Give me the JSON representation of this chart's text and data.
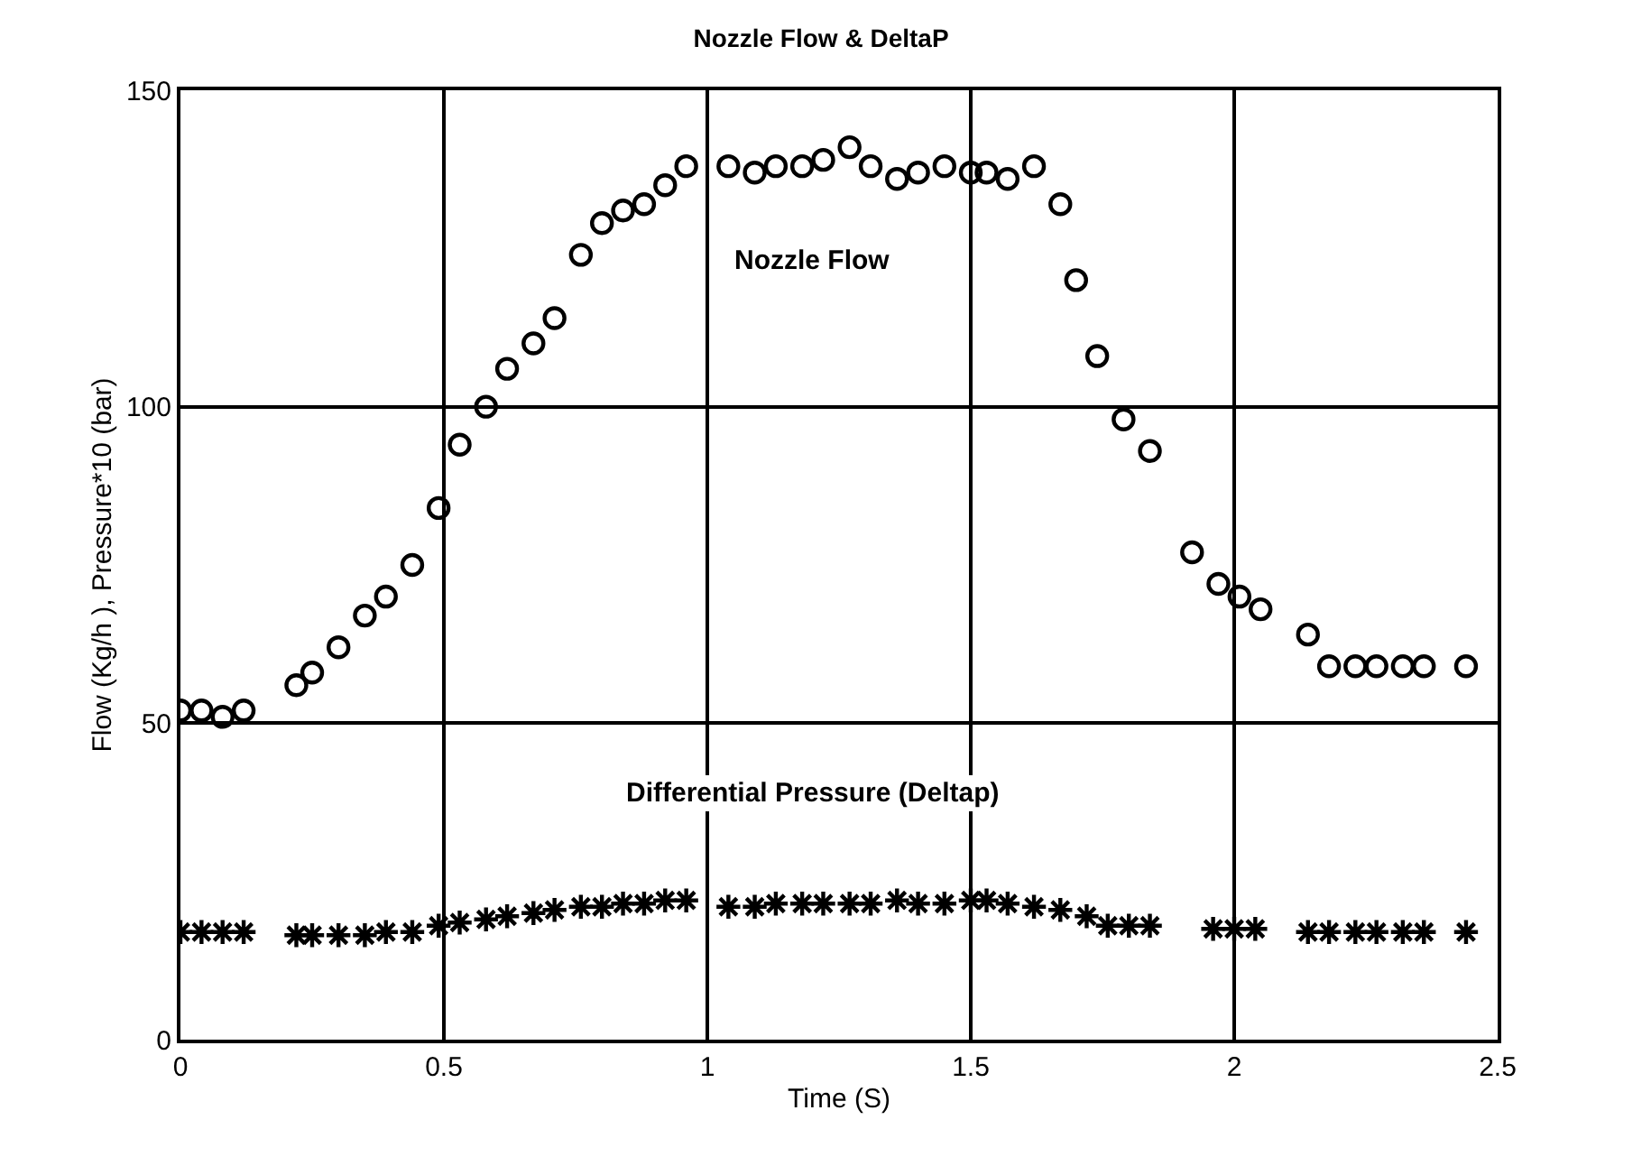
{
  "chart_data": {
    "type": "scatter",
    "title": "Nozzle Flow & DeltaP",
    "xlabel": "Time (S)",
    "ylabel": "Flow (Kg/h ), Pressure*10 (bar)",
    "xlim": [
      0,
      2.5
    ],
    "xticks": [
      0,
      0.5,
      1,
      1.5,
      2,
      2.5
    ],
    "ylim": [
      0,
      150
    ],
    "yticks": [
      0,
      50,
      100,
      150
    ],
    "grid": true,
    "legend": false,
    "series": [
      {
        "color": "#000000",
        "marker": "circle",
        "x": [
          0,
          0.04,
          0.08,
          0.12,
          0.22,
          0.25,
          0.3,
          0.35,
          0.39,
          0.44,
          0.49,
          0.53,
          0.58,
          0.62,
          0.67,
          0.71,
          0.76,
          0.8,
          0.84,
          0.88,
          0.92,
          0.96,
          1.04,
          1.09,
          1.13,
          1.18,
          1.22,
          1.27,
          1.31,
          1.36,
          1.4,
          1.45,
          1.5,
          1.53,
          1.57,
          1.62,
          1.67,
          1.7,
          1.74,
          1.79,
          1.84,
          1.92,
          1.97,
          2.01,
          2.05,
          2.14,
          2.18,
          2.23,
          2.27,
          2.32,
          2.36,
          2.44
        ],
        "values": [
          52,
          52,
          51,
          52,
          56,
          58,
          62,
          67,
          70,
          75,
          84,
          94,
          100,
          106,
          110,
          114,
          124,
          129,
          131,
          132,
          135,
          138,
          138,
          137,
          138,
          138,
          139,
          141,
          138,
          136,
          137,
          138,
          137,
          137,
          136,
          138,
          132,
          120,
          108,
          98,
          93,
          77,
          72,
          70,
          68,
          64,
          59,
          59,
          59,
          59,
          59,
          59
        ]
      },
      {
        "color": "#000000",
        "marker": "cross",
        "x": [
          0,
          0.04,
          0.08,
          0.12,
          0.22,
          0.25,
          0.3,
          0.35,
          0.39,
          0.44,
          0.49,
          0.53,
          0.58,
          0.62,
          0.67,
          0.71,
          0.76,
          0.8,
          0.84,
          0.88,
          0.92,
          0.96,
          1.04,
          1.09,
          1.13,
          1.18,
          1.22,
          1.27,
          1.31,
          1.36,
          1.4,
          1.45,
          1.5,
          1.53,
          1.57,
          1.62,
          1.67,
          1.72,
          1.76,
          1.8,
          1.84,
          1.96,
          2.0,
          2.04,
          2.14,
          2.18,
          2.23,
          2.27,
          2.32,
          2.36,
          2.44
        ],
        "values": [
          17,
          17,
          17,
          17,
          16.5,
          16.5,
          16.5,
          16.5,
          17,
          17,
          18,
          18.5,
          19,
          19.5,
          20,
          20.5,
          21,
          21,
          21.5,
          21.5,
          22,
          22,
          21,
          21,
          21.5,
          21.5,
          21.5,
          21.5,
          21.5,
          22,
          21.5,
          21.5,
          22,
          22,
          21.5,
          21,
          20.5,
          19.5,
          18,
          18,
          18,
          17.5,
          17.5,
          17.5,
          17,
          17,
          17,
          17,
          17,
          17,
          17
        ]
      }
    ],
    "annotations": [
      "Nozzle Flow",
      "Differential Pressure (Deltap)"
    ]
  }
}
